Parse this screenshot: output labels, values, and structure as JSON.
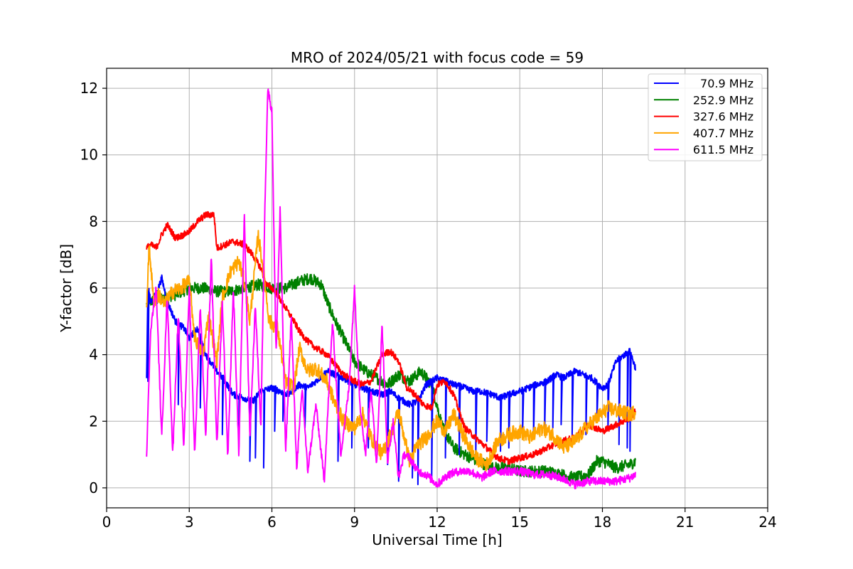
{
  "chart_data": {
    "type": "line",
    "title": "MRO of 2024/05/21 with focus code = 59",
    "xlabel": "Universal Time [h]",
    "ylabel": "Y-factor [dB]",
    "xlim": [
      0,
      24
    ],
    "ylim": [
      -0.6,
      12.6
    ],
    "xticks": [
      0,
      3,
      6,
      9,
      12,
      15,
      18,
      21,
      24
    ],
    "yticks": [
      0,
      2,
      4,
      6,
      8,
      10,
      12
    ],
    "grid": true,
    "legend_position": "top-right",
    "series": [
      {
        "name": "70.9 MHz",
        "color": "#0000ff",
        "x": [
          1.45,
          1.5,
          1.6,
          1.8,
          2.0,
          2.2,
          2.5,
          2.8,
          3.0,
          3.3,
          3.6,
          4.0,
          4.3,
          4.6,
          5.0,
          5.3,
          5.6,
          6.0,
          6.3,
          6.6,
          7.0,
          7.3,
          7.6,
          8.0,
          8.3,
          8.6,
          9.0,
          9.3,
          9.6,
          10.0,
          10.3,
          10.6,
          11.0,
          11.3,
          11.6,
          12.0,
          12.3,
          12.6,
          13.0,
          13.3,
          13.6,
          14.0,
          14.3,
          14.6,
          15.0,
          15.3,
          15.6,
          16.0,
          16.3,
          16.6,
          17.0,
          17.3,
          17.6,
          18.0,
          18.2,
          18.5,
          18.8,
          19.0,
          19.2
        ],
        "y": [
          3.3,
          6.0,
          5.6,
          5.8,
          6.3,
          5.6,
          5.0,
          4.8,
          4.5,
          4.8,
          4.0,
          3.5,
          3.2,
          2.8,
          2.7,
          2.6,
          2.9,
          3.0,
          2.9,
          2.8,
          3.1,
          3.0,
          3.2,
          3.5,
          3.4,
          3.3,
          3.1,
          3.0,
          2.9,
          2.8,
          2.9,
          2.7,
          2.5,
          2.6,
          3.1,
          3.3,
          3.2,
          3.1,
          3.0,
          2.9,
          2.9,
          2.8,
          2.7,
          2.8,
          2.9,
          3.0,
          3.1,
          3.2,
          3.4,
          3.3,
          3.5,
          3.4,
          3.3,
          3.0,
          3.1,
          3.8,
          4.0,
          4.1,
          3.6
        ],
        "dips": [
          [
            1.5,
            3.2
          ],
          [
            2.6,
            2.5
          ],
          [
            3.4,
            2.4
          ],
          [
            4.2,
            1.6
          ],
          [
            4.8,
            1.2
          ],
          [
            5.2,
            0.8
          ],
          [
            5.4,
            0.9
          ],
          [
            5.7,
            0.6
          ],
          [
            6.1,
            1.7
          ],
          [
            6.4,
            2.0
          ],
          [
            7.2,
            1.8
          ],
          [
            8.4,
            0.8
          ],
          [
            8.9,
            1.2
          ],
          [
            9.5,
            1.2
          ],
          [
            10.2,
            0.7
          ],
          [
            10.6,
            0.2
          ],
          [
            11.1,
            0.3
          ],
          [
            11.3,
            0.1
          ],
          [
            11.8,
            0.3
          ],
          [
            12.3,
            0.9
          ],
          [
            12.8,
            1.0
          ],
          [
            13.4,
            1.0
          ],
          [
            13.8,
            1.4
          ],
          [
            14.3,
            1.1
          ],
          [
            14.6,
            1.2
          ],
          [
            15.1,
            1.6
          ],
          [
            15.5,
            1.5
          ],
          [
            15.9,
            1.6
          ],
          [
            16.2,
            1.8
          ],
          [
            16.5,
            1.9
          ],
          [
            16.9,
            1.6
          ],
          [
            17.4,
            1.6
          ],
          [
            17.8,
            2.0
          ],
          [
            18.2,
            1.8
          ],
          [
            18.6,
            1.3
          ],
          [
            18.9,
            1.2
          ],
          [
            19.0,
            1.1
          ]
        ]
      },
      {
        "name": "252.9 MHz",
        "color": "#008000",
        "x": [
          1.45,
          1.6,
          2.0,
          2.5,
          3.0,
          3.5,
          4.0,
          4.5,
          5.0,
          5.5,
          6.0,
          6.5,
          7.0,
          7.4,
          7.8,
          8.0,
          8.3,
          8.6,
          9.0,
          9.4,
          9.8,
          10.2,
          10.6,
          11.0,
          11.4,
          11.8,
          12.2,
          12.6,
          13.0,
          13.5,
          14.0,
          14.5,
          15.0,
          15.5,
          16.0,
          16.5,
          17.0,
          17.5,
          17.8,
          18.0,
          18.5,
          19.0,
          19.2
        ],
        "y": [
          5.5,
          5.6,
          5.7,
          5.8,
          6.0,
          6.0,
          5.9,
          5.9,
          6.0,
          6.1,
          6.0,
          6.0,
          6.2,
          6.3,
          6.1,
          5.6,
          5.0,
          4.5,
          3.8,
          3.5,
          3.3,
          3.1,
          3.4,
          3.2,
          3.5,
          3.1,
          1.8,
          1.2,
          1.0,
          0.8,
          0.6,
          0.6,
          0.5,
          0.5,
          0.5,
          0.4,
          0.3,
          0.4,
          0.8,
          0.8,
          0.6,
          0.7,
          0.8
        ],
        "noise": 0.35
      },
      {
        "name": "327.6 MHz",
        "color": "#ff0000",
        "x": [
          1.45,
          1.6,
          1.8,
          2.0,
          2.2,
          2.5,
          2.8,
          3.0,
          3.3,
          3.6,
          3.9,
          4.0,
          4.3,
          4.6,
          5.0,
          5.3,
          5.6,
          5.8,
          6.0,
          6.2,
          6.5,
          6.8,
          7.0,
          7.3,
          7.6,
          8.0,
          8.3,
          8.6,
          9.0,
          9.3,
          9.6,
          10.0,
          10.3,
          10.6,
          10.9,
          11.2,
          11.5,
          11.8,
          12.0,
          12.3,
          12.6,
          13.0,
          13.4,
          13.8,
          14.2,
          14.6,
          15.0,
          15.5,
          16.0,
          16.5,
          17.0,
          17.5,
          18.0,
          18.5,
          19.0,
          19.2
        ],
        "y": [
          7.2,
          7.3,
          7.2,
          7.6,
          7.9,
          7.5,
          7.6,
          7.7,
          8.0,
          8.2,
          8.2,
          7.2,
          7.3,
          7.4,
          7.3,
          7.0,
          6.6,
          6.1,
          6.0,
          5.8,
          5.4,
          5.0,
          4.7,
          4.4,
          4.2,
          4.0,
          3.7,
          3.4,
          3.2,
          3.1,
          3.2,
          4.0,
          4.1,
          3.8,
          3.0,
          2.8,
          2.5,
          2.4,
          3.1,
          3.2,
          2.8,
          1.8,
          1.5,
          1.2,
          0.9,
          0.8,
          0.9,
          1.0,
          1.2,
          1.4,
          1.5,
          1.9,
          1.7,
          1.9,
          2.1,
          2.3
        ],
        "noise": 0.2
      },
      {
        "name": "407.7 MHz",
        "color": "#ffa500",
        "x": [
          1.45,
          1.55,
          1.7,
          1.9,
          2.1,
          2.4,
          2.7,
          3.0,
          3.2,
          3.5,
          3.7,
          4.0,
          4.2,
          4.5,
          4.8,
          5.0,
          5.2,
          5.5,
          5.7,
          5.9,
          6.2,
          6.5,
          6.8,
          7.0,
          7.3,
          7.6,
          8.0,
          8.3,
          8.6,
          9.0,
          9.3,
          9.6,
          10.0,
          10.3,
          10.6,
          11.0,
          11.3,
          11.6,
          12.0,
          12.3,
          12.6,
          13.0,
          13.4,
          13.8,
          14.2,
          14.6,
          15.0,
          15.4,
          15.8,
          16.2,
          16.6,
          17.0,
          17.4,
          17.8,
          18.2,
          18.6,
          19.0,
          19.2
        ],
        "y": [
          5.5,
          7.3,
          5.6,
          5.8,
          5.5,
          5.9,
          6.0,
          6.2,
          4.5,
          4.0,
          5.2,
          3.8,
          5.7,
          6.5,
          6.8,
          6.2,
          5.0,
          7.6,
          6.5,
          5.0,
          4.8,
          3.2,
          3.0,
          4.2,
          3.5,
          3.6,
          3.2,
          2.5,
          2.0,
          1.8,
          2.2,
          1.5,
          1.0,
          1.6,
          2.3,
          0.8,
          1.3,
          1.5,
          2.0,
          1.7,
          2.2,
          1.5,
          0.9,
          0.7,
          1.4,
          1.6,
          1.7,
          1.5,
          1.8,
          1.6,
          1.2,
          1.4,
          1.8,
          2.1,
          2.4,
          2.3,
          2.2,
          2.3
        ],
        "noise": 0.45
      },
      {
        "name": "611.5 MHz",
        "color": "#ff00ff",
        "x": [
          1.45,
          1.6,
          1.8,
          2.0,
          2.2,
          2.4,
          2.6,
          2.8,
          3.0,
          3.2,
          3.4,
          3.6,
          3.8,
          4.0,
          4.2,
          4.4,
          4.6,
          4.8,
          5.0,
          5.2,
          5.4,
          5.6,
          5.75,
          5.85,
          6.0,
          6.15,
          6.3,
          6.5,
          6.7,
          6.9,
          7.1,
          7.3,
          7.6,
          7.9,
          8.2,
          8.5,
          8.8,
          9.0,
          9.2,
          9.4,
          9.6,
          9.8,
          10.0,
          10.2,
          10.4,
          10.6,
          10.8,
          11.0,
          11.3,
          11.6,
          12.0,
          12.4,
          12.8,
          13.2,
          13.6,
          14.0,
          14.5,
          15.0,
          15.5,
          16.0,
          16.5,
          17.0,
          17.5,
          18.0,
          18.5,
          19.0,
          19.2
        ],
        "y": [
          1.0,
          4.8,
          6.0,
          1.5,
          5.8,
          1.0,
          5.2,
          1.2,
          6.0,
          1.0,
          5.5,
          1.5,
          7.0,
          1.2,
          5.6,
          0.9,
          6.0,
          1.0,
          8.2,
          1.5,
          5.5,
          1.8,
          8.6,
          12.0,
          11.3,
          4.0,
          8.4,
          1.0,
          5.2,
          0.6,
          3.0,
          0.5,
          2.5,
          0.2,
          5.0,
          1.0,
          3.0,
          6.0,
          2.5,
          1.0,
          3.0,
          0.7,
          4.9,
          0.8,
          2.0,
          0.3,
          1.0,
          0.9,
          0.5,
          0.4,
          0.1,
          0.4,
          0.5,
          0.5,
          0.3,
          0.5,
          0.5,
          0.5,
          0.4,
          0.4,
          0.3,
          0.1,
          0.2,
          0.2,
          0.2,
          0.3,
          0.4
        ],
        "noise": 0.25
      }
    ]
  }
}
